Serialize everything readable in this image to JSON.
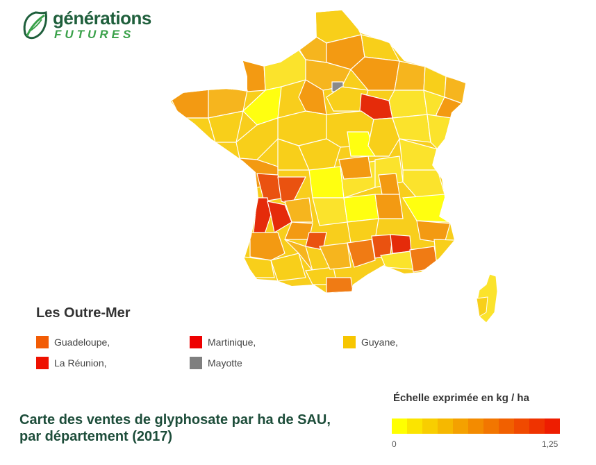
{
  "logo": {
    "line1": "générations",
    "line2": "FUTURES"
  },
  "title": {
    "line1": "Carte des ventes de glyphosate par ha de SAU,",
    "line2": "par département (2017)"
  },
  "outremer": {
    "title": "Les Outre-Mer",
    "items": [
      {
        "label": "Guadeloupe,",
        "color": "#f25c05"
      },
      {
        "label": "Martinique,",
        "color": "#ee0000"
      },
      {
        "label": "Guyane,",
        "color": "#f7c600"
      },
      {
        "label": "La Réunion,",
        "color": "#ee1100"
      },
      {
        "label": "Mayotte",
        "color": "#7f7f7f"
      }
    ]
  },
  "scale": {
    "title": "Échelle exprimée en kg / ha",
    "min": "0",
    "max": "1,25",
    "colors": [
      "#ffff00",
      "#fbe400",
      "#f8ce00",
      "#f6b800",
      "#f4a100",
      "#f38b00",
      "#f27600",
      "#f16000",
      "#f04a00",
      "#ef3300",
      "#ee1d00"
    ]
  },
  "colors": {
    "lightest": "#ffff10",
    "light": "#fbe32c",
    "gold": "#f8cf1a",
    "amber": "#f6b51e",
    "orange": "#f39a12",
    "deep": "#f07b14",
    "red": "#ea5210",
    "crimson": "#e52b0a",
    "nodata": "#8a8a8a",
    "border": "#ffffff"
  }
}
